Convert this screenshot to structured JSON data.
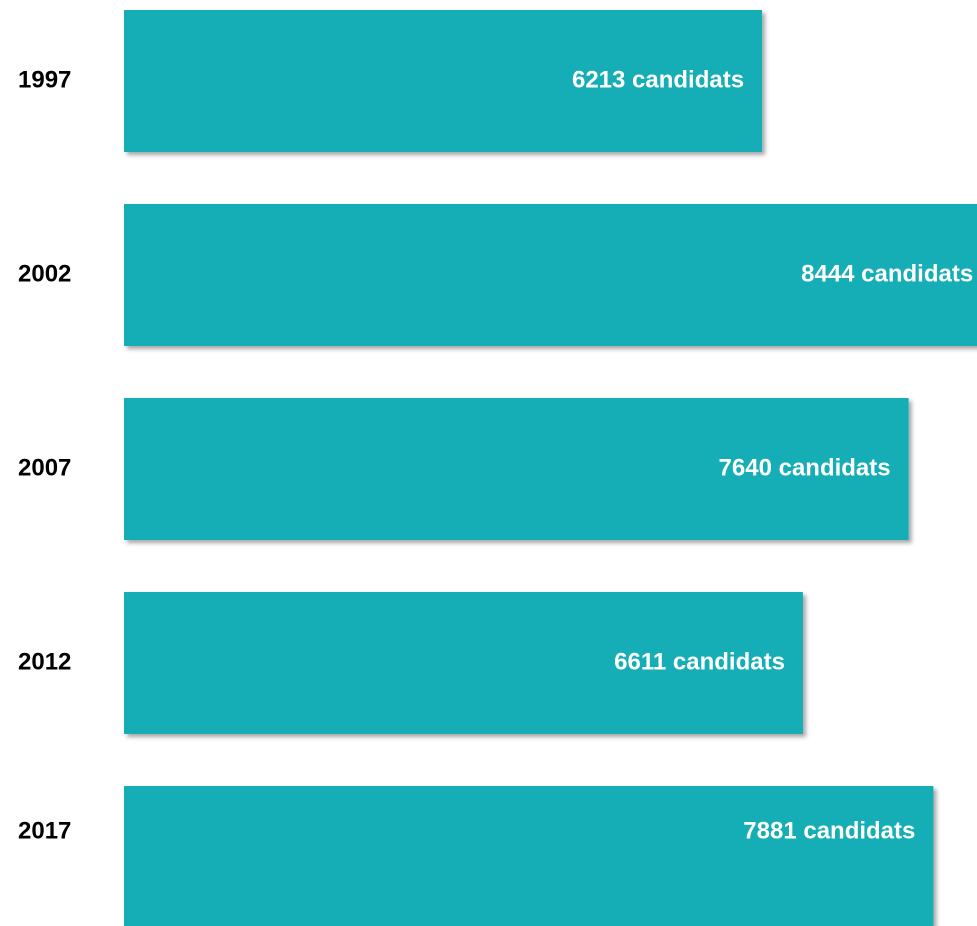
{
  "chart_data": {
    "type": "bar",
    "orientation": "horizontal",
    "categories": [
      "1997",
      "2002",
      "2007",
      "2012",
      "2017"
    ],
    "values": [
      6213,
      8444,
      7640,
      6611,
      7881
    ],
    "value_labels": [
      "6213 candidats",
      "8444 candidats",
      "7640 candidats",
      "6611 candidats",
      "7881 candidats"
    ],
    "color": "#14aeb6"
  }
}
